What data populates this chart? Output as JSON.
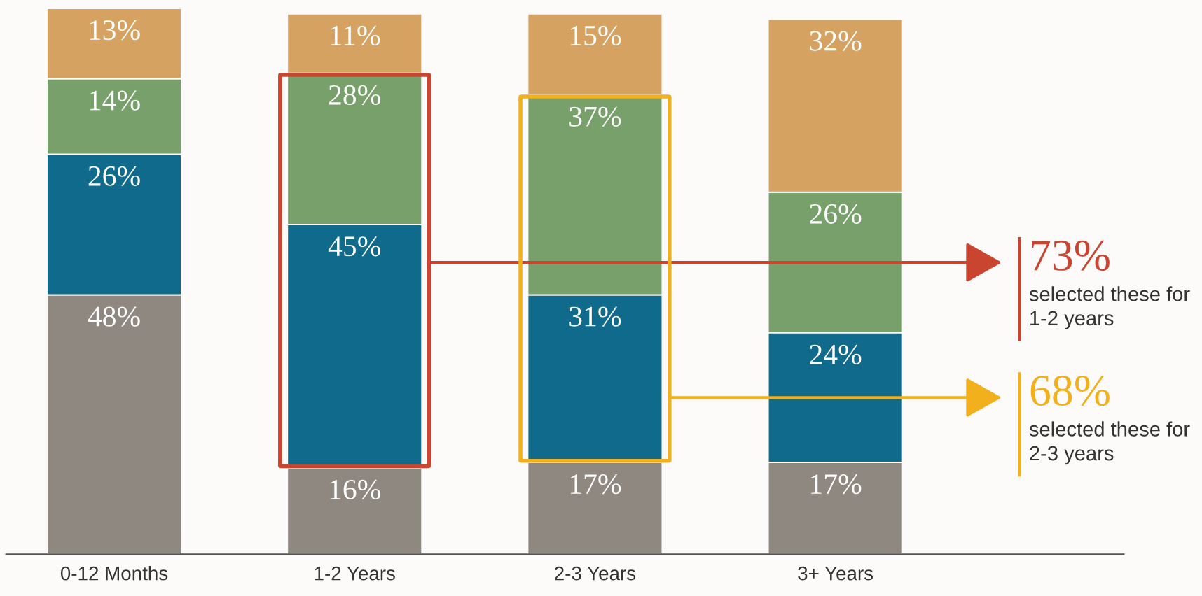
{
  "chart_data": {
    "type": "bar",
    "stacked": true,
    "categories": [
      "0-12 Months",
      "1-2 Years",
      "2-3 Years",
      "3+ Years"
    ],
    "series": [
      {
        "color": "#8f8881",
        "values": [
          48,
          16,
          17,
          17
        ],
        "value_labels": [
          "48%",
          "16%",
          "17%",
          "17%"
        ]
      },
      {
        "color": "#0f6a8c",
        "values": [
          26,
          45,
          31,
          24
        ],
        "value_labels": [
          "26%",
          "45%",
          "31%",
          "24%"
        ]
      },
      {
        "color": "#77a06b",
        "values": [
          14,
          28,
          37,
          26
        ],
        "value_labels": [
          "14%",
          "28%",
          "37%",
          "26%"
        ]
      },
      {
        "color": "#d5a262",
        "values": [
          13,
          11,
          15,
          32
        ],
        "value_labels": [
          "13%",
          "11%",
          "15%",
          "32%"
        ]
      }
    ],
    "annotations": [
      "73%",
      "selected these for 1-2 years",
      "68%",
      "selected these for 2-3 years"
    ]
  }
}
